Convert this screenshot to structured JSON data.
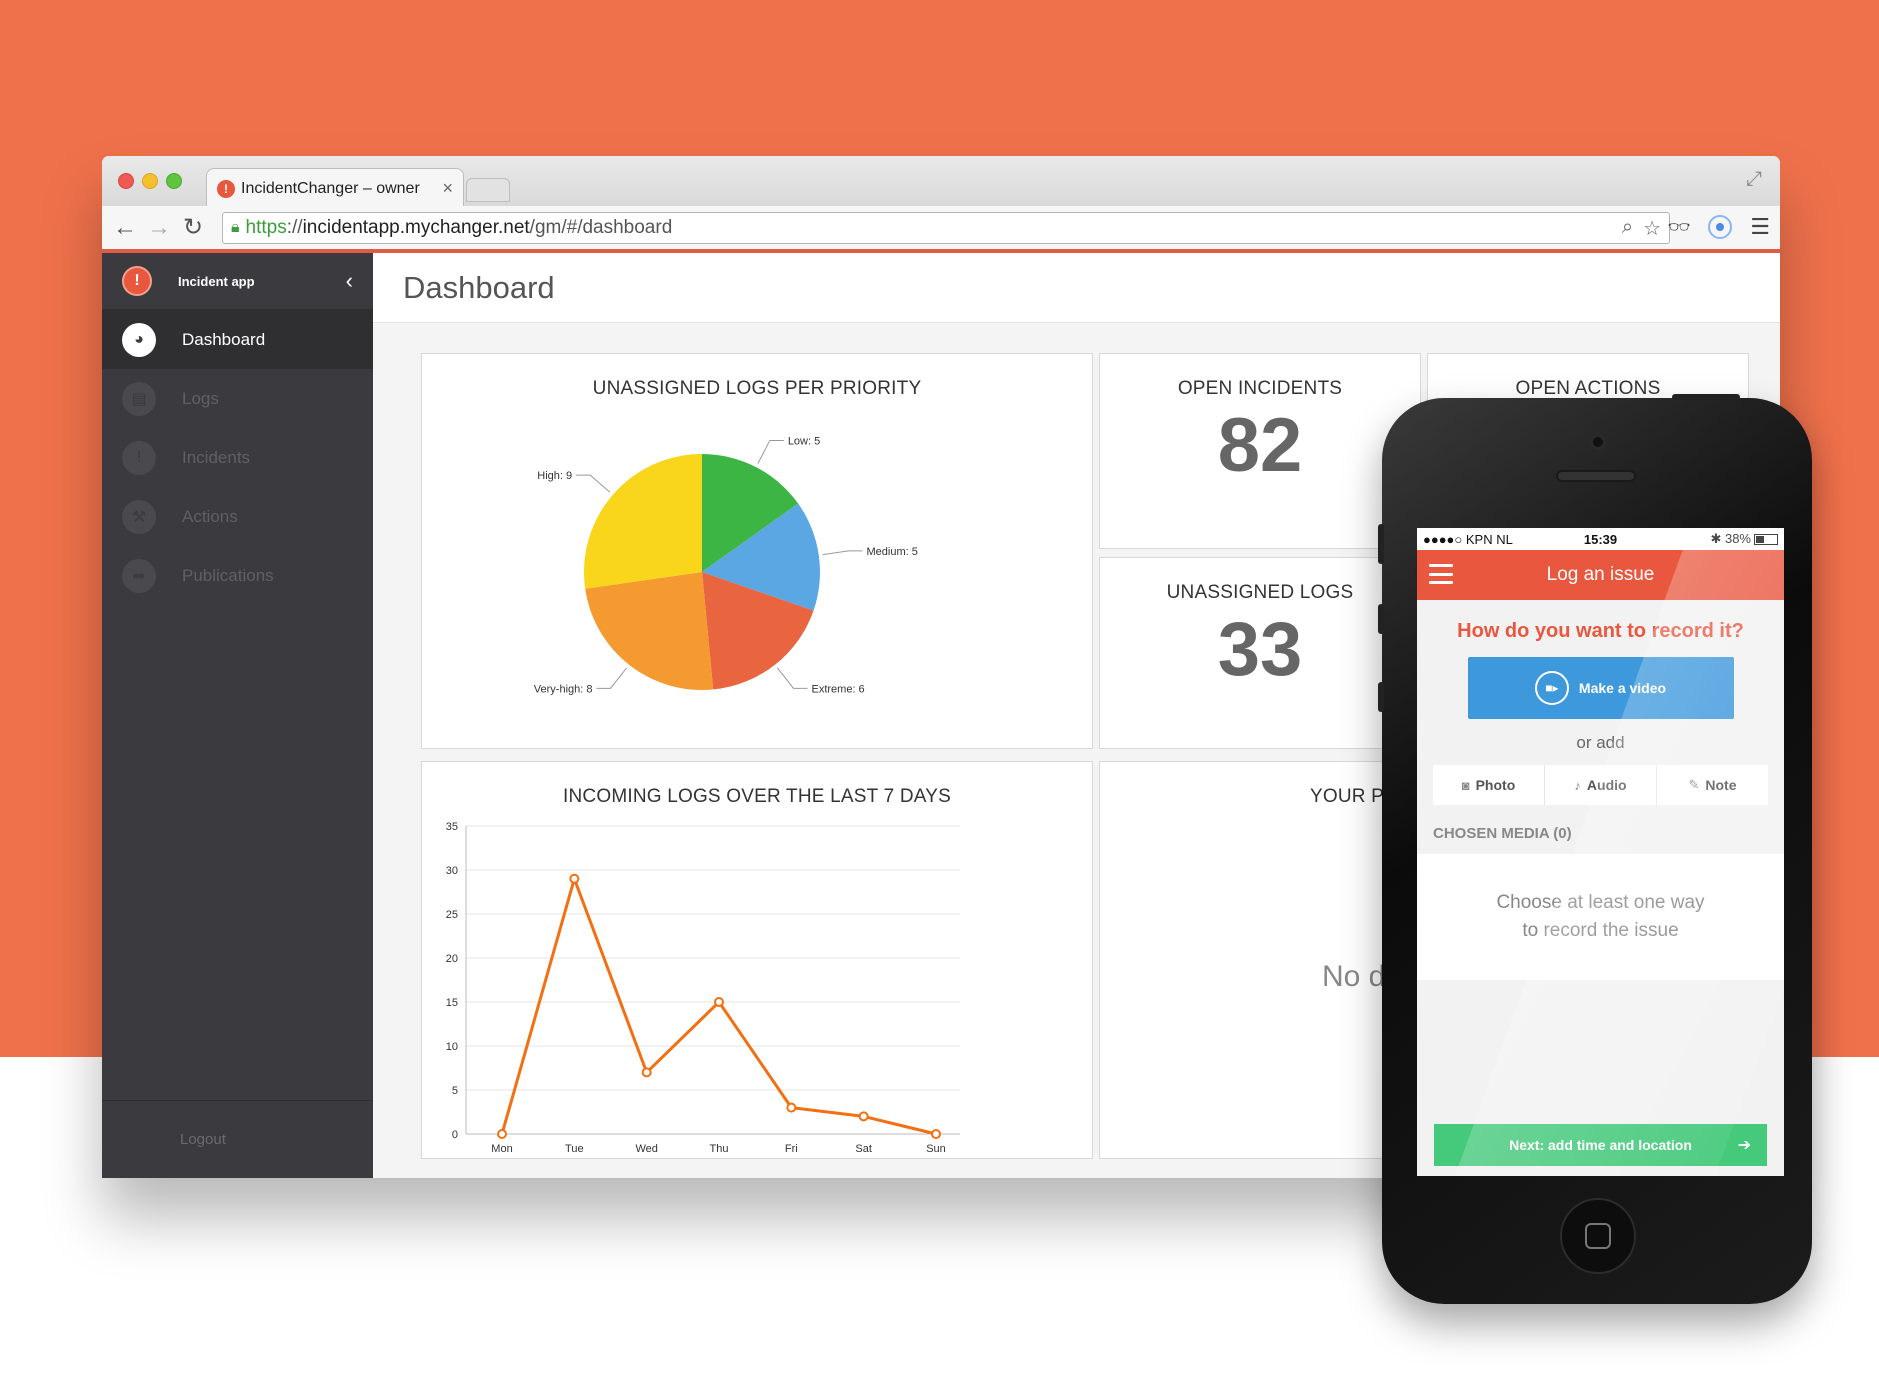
{
  "browser": {
    "tab_title": "IncidentChanger – owner",
    "tab_close": "×",
    "url_https": "https",
    "url_sep": "://",
    "url_domain": "incidentapp.mychanger.net",
    "url_path": "/gm/#/dashboard",
    "icons": [
      "back-icon",
      "forward-icon",
      "reload-icon",
      "lock-icon",
      "zoom-icon",
      "star-icon",
      "extension-icon",
      "menu-icon"
    ]
  },
  "sidebar": {
    "logo": "!",
    "app_name": "Incident app",
    "items": [
      {
        "label": "Dashboard",
        "active": true,
        "icon": "dashboard-icon"
      },
      {
        "label": "Logs",
        "active": false,
        "icon": "document-icon"
      },
      {
        "label": "Incidents",
        "active": false,
        "icon": "alert-icon"
      },
      {
        "label": "Actions",
        "active": false,
        "icon": "wrench-icon"
      },
      {
        "label": "Publications",
        "active": false,
        "icon": "share-icon"
      }
    ],
    "logout": "Logout"
  },
  "page": {
    "title": "Dashboard"
  },
  "panels": {
    "pie_title": "UNASSIGNED LOGS PER PRIORITY",
    "open_incidents_title": "OPEN INCIDENTS",
    "open_incidents_value": "82",
    "open_actions_title": "OPEN ACTIONS",
    "unassigned_logs_title": "UNASSIGNED LOGS",
    "unassigned_logs_value": "33",
    "line_title": "INCOMING LOGS OVER THE LAST 7 DAYS",
    "your_panel_title": "YOUR PI",
    "no_data": "No d"
  },
  "chart_data": [
    {
      "type": "pie",
      "title": "UNASSIGNED LOGS PER PRIORITY",
      "slices": [
        {
          "label": "Low: 5",
          "value": 5,
          "color": "#3cb544"
        },
        {
          "label": "Medium: 5",
          "value": 5,
          "color": "#5ba7e4"
        },
        {
          "label": "Extreme: 6",
          "value": 6,
          "color": "#e8653f"
        },
        {
          "label": "Very-high: 8",
          "value": 8,
          "color": "#f59a30"
        },
        {
          "label": "High: 9",
          "value": 9,
          "color": "#f9d61b"
        }
      ]
    },
    {
      "type": "line",
      "title": "INCOMING LOGS OVER THE LAST 7 DAYS",
      "categories": [
        "Mon",
        "Tue",
        "Wed",
        "Thu",
        "Fri",
        "Sat",
        "Sun"
      ],
      "values": [
        0,
        29,
        7,
        15,
        3,
        2,
        0
      ],
      "ylim": [
        0,
        35
      ],
      "yticks": [
        0,
        5,
        10,
        15,
        20,
        25,
        30,
        35
      ],
      "grid": true,
      "color": "#f36f12"
    }
  ],
  "phone": {
    "status_left": "●●●●○ KPN NL",
    "status_time": "15:39",
    "status_right": "✱ 38%",
    "app_title": "Log an issue",
    "question": "How do you want to record it?",
    "video_button": "Make a video",
    "or_add": "or add",
    "media_buttons": [
      {
        "label": "Photo",
        "icon": "camera-icon"
      },
      {
        "label": "Audio",
        "icon": "microphone-icon"
      },
      {
        "label": "Note",
        "icon": "pencil-icon"
      }
    ],
    "chosen_media": "CHOSEN MEDIA (0)",
    "empty_line1": "Choose at least one way",
    "empty_line2": "to record the issue",
    "next_button": "Next: add time and location",
    "accent": "#e9573f",
    "video_color": "#3d98dc",
    "next_color": "#45c97b"
  },
  "colors": {
    "background": "#ef714b",
    "sidebar": "#3b3a3e"
  }
}
